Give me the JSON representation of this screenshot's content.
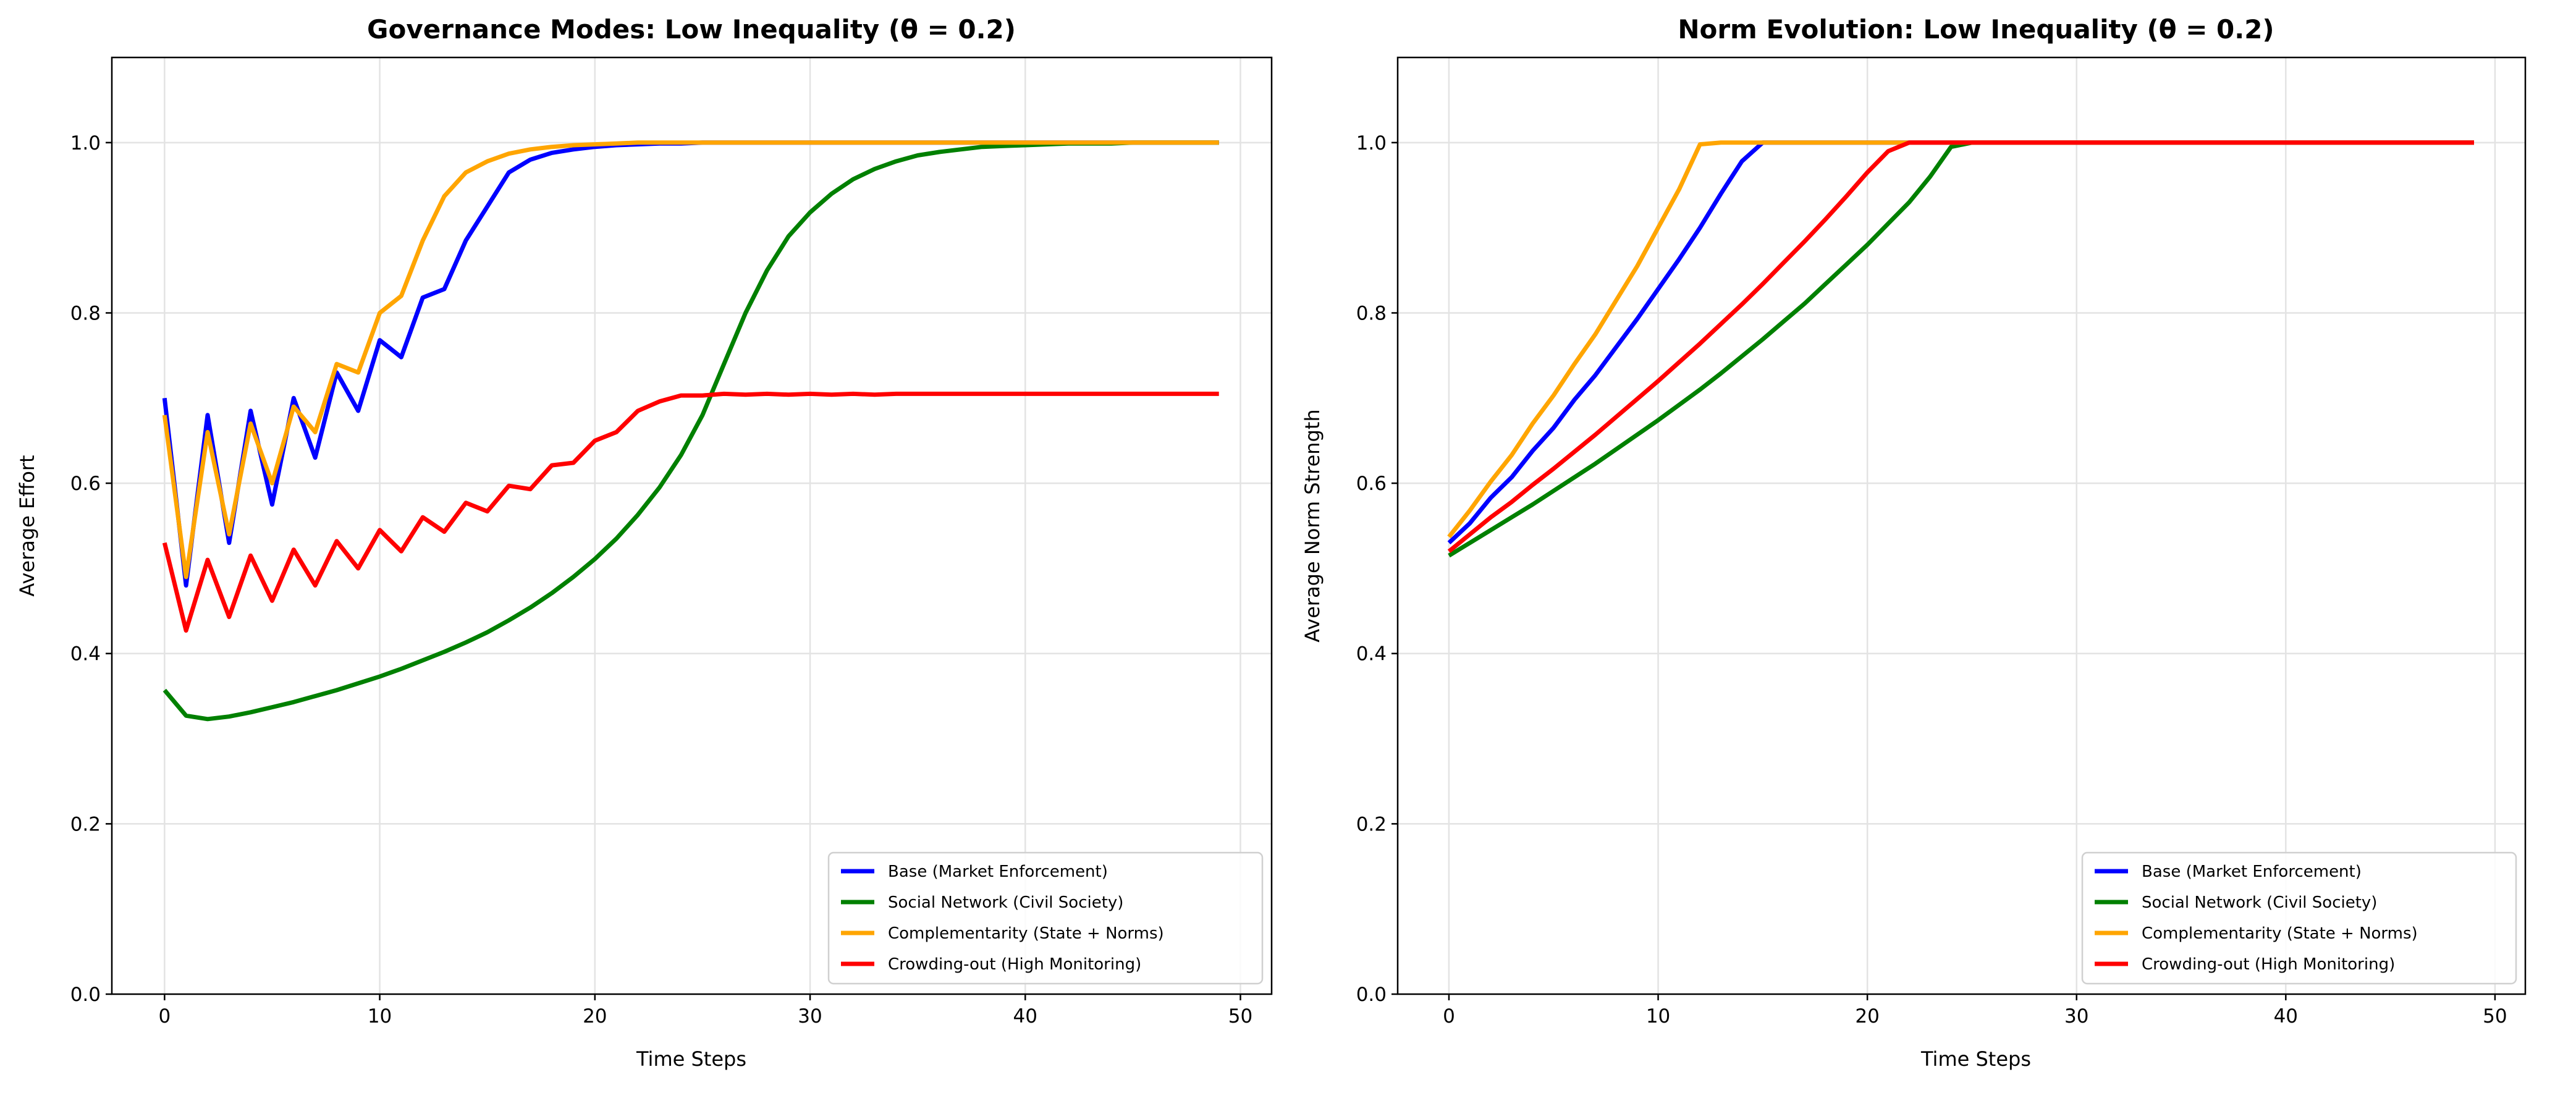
{
  "chart_data": [
    {
      "type": "line",
      "title": "Governance Modes: Low Inequality (θ = 0.2)",
      "xlabel": "Time Steps",
      "ylabel": "Average Effort",
      "xlim": [
        -2.45,
        51.45
      ],
      "ylim": [
        0,
        1.1
      ],
      "xticks": [
        0,
        10,
        20,
        30,
        40,
        50
      ],
      "yticks": [
        0.0,
        0.2,
        0.4,
        0.6,
        0.8,
        1.0
      ],
      "grid": true,
      "legend_position": "lower-right",
      "series": [
        {
          "name": "Base (Market Enforcement)",
          "color": "#0000ff",
          "values": [
            0.7,
            0.48,
            0.68,
            0.53,
            0.685,
            0.575,
            0.7,
            0.63,
            0.73,
            0.685,
            0.768,
            0.748,
            0.818,
            0.828,
            0.885,
            0.925,
            0.965,
            0.98,
            0.988,
            0.992,
            0.995,
            0.997,
            0.998,
            0.999,
            0.999,
            1,
            1,
            1,
            1,
            1,
            1,
            1,
            1,
            1,
            1,
            1,
            1,
            1,
            1,
            1,
            1,
            1,
            1,
            1,
            1,
            1,
            1,
            1,
            1,
            1
          ]
        },
        {
          "name": "Social Network (Civil Society)",
          "color": "#008000",
          "values": [
            0.357,
            0.327,
            0.323,
            0.326,
            0.331,
            0.337,
            0.343,
            0.35,
            0.357,
            0.365,
            0.373,
            0.382,
            0.392,
            0.402,
            0.413,
            0.425,
            0.439,
            0.454,
            0.471,
            0.49,
            0.511,
            0.535,
            0.563,
            0.595,
            0.633,
            0.68,
            0.74,
            0.8,
            0.85,
            0.89,
            0.918,
            0.94,
            0.957,
            0.969,
            0.978,
            0.985,
            0.989,
            0.992,
            0.995,
            0.996,
            0.997,
            0.998,
            0.999,
            0.999,
            0.999,
            1,
            1,
            1,
            1,
            1
          ]
        },
        {
          "name": "Complementarity (State + Norms)",
          "color": "#ffa500",
          "values": [
            0.68,
            0.49,
            0.66,
            0.54,
            0.67,
            0.6,
            0.69,
            0.66,
            0.74,
            0.73,
            0.8,
            0.82,
            0.885,
            0.937,
            0.965,
            0.978,
            0.987,
            0.992,
            0.995,
            0.997,
            0.998,
            0.999,
            1,
            1,
            1,
            1,
            1,
            1,
            1,
            1,
            1,
            1,
            1,
            1,
            1,
            1,
            1,
            1,
            1,
            1,
            1,
            1,
            1,
            1,
            1,
            1,
            1,
            1,
            1,
            1
          ]
        },
        {
          "name": "Crowding-out (High Monitoring)",
          "color": "#ff0000",
          "values": [
            0.53,
            0.427,
            0.51,
            0.443,
            0.515,
            0.462,
            0.522,
            0.48,
            0.532,
            0.5,
            0.545,
            0.52,
            0.56,
            0.543,
            0.577,
            0.567,
            0.597,
            0.593,
            0.621,
            0.624,
            0.65,
            0.66,
            0.685,
            0.696,
            0.703,
            0.703,
            0.705,
            0.704,
            0.705,
            0.704,
            0.705,
            0.704,
            0.705,
            0.704,
            0.705,
            0.705,
            0.705,
            0.705,
            0.705,
            0.705,
            0.705,
            0.705,
            0.705,
            0.705,
            0.705,
            0.705,
            0.705,
            0.705,
            0.705,
            0.705
          ]
        }
      ]
    },
    {
      "type": "line",
      "title": "Norm Evolution: Low Inequality (θ = 0.2)",
      "xlabel": "Time Steps",
      "ylabel": "Average Norm Strength",
      "xlim": [
        -2.45,
        51.45
      ],
      "ylim": [
        0,
        1.1
      ],
      "xticks": [
        0,
        10,
        20,
        30,
        40,
        50
      ],
      "yticks": [
        0.0,
        0.2,
        0.4,
        0.6,
        0.8,
        1.0
      ],
      "grid": true,
      "legend_position": "lower-right",
      "series": [
        {
          "name": "Base (Market Enforcement)",
          "color": "#0000ff",
          "values": [
            0.53,
            0.553,
            0.583,
            0.607,
            0.638,
            0.665,
            0.698,
            0.727,
            0.76,
            0.793,
            0.828,
            0.863,
            0.9,
            0.94,
            0.978,
            1,
            1,
            1,
            1,
            1,
            1,
            1,
            1,
            1,
            1,
            1,
            1,
            1,
            1,
            1,
            1,
            1,
            1,
            1,
            1,
            1,
            1,
            1,
            1,
            1,
            1,
            1,
            1,
            1,
            1,
            1,
            1,
            1,
            1,
            1
          ]
        },
        {
          "name": "Social Network (Civil Society)",
          "color": "#008000",
          "values": [
            0.515,
            0.53,
            0.545,
            0.56,
            0.575,
            0.591,
            0.607,
            0.623,
            0.64,
            0.657,
            0.674,
            0.692,
            0.71,
            0.729,
            0.749,
            0.769,
            0.79,
            0.811,
            0.834,
            0.857,
            0.88,
            0.905,
            0.93,
            0.96,
            0.995,
            1,
            1,
            1,
            1,
            1,
            1,
            1,
            1,
            1,
            1,
            1,
            1,
            1,
            1,
            1,
            1,
            1,
            1,
            1,
            1,
            1,
            1,
            1,
            1,
            1
          ]
        },
        {
          "name": "Complementarity (State + Norms)",
          "color": "#ffa500",
          "values": [
            0.537,
            0.568,
            0.602,
            0.633,
            0.67,
            0.703,
            0.74,
            0.775,
            0.815,
            0.855,
            0.9,
            0.945,
            0.998,
            1,
            1,
            1,
            1,
            1,
            1,
            1,
            1,
            1,
            1,
            1,
            1,
            1,
            1,
            1,
            1,
            1,
            1,
            1,
            1,
            1,
            1,
            1,
            1,
            1,
            1,
            1,
            1,
            1,
            1,
            1,
            1,
            1,
            1,
            1,
            1,
            1
          ]
        },
        {
          "name": "Crowding-out (High Monitoring)",
          "color": "#ff0000",
          "values": [
            0.52,
            0.54,
            0.56,
            0.578,
            0.598,
            0.617,
            0.637,
            0.657,
            0.678,
            0.699,
            0.72,
            0.742,
            0.764,
            0.787,
            0.81,
            0.834,
            0.859,
            0.884,
            0.91,
            0.937,
            0.965,
            0.99,
            1,
            1,
            1,
            1,
            1,
            1,
            1,
            1,
            1,
            1,
            1,
            1,
            1,
            1,
            1,
            1,
            1,
            1,
            1,
            1,
            1,
            1,
            1,
            1,
            1,
            1,
            1,
            1
          ]
        }
      ]
    }
  ]
}
